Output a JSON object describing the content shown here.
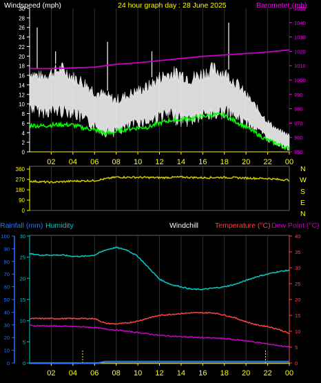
{
  "header": {
    "windspeed_label": "Windspeed (mph)",
    "title": "24 hour graph day : 28 June 2025",
    "barometer_label": "Barometer (mb)"
  },
  "compass": [
    "N",
    "W",
    "S",
    "E",
    "N"
  ],
  "footer_labels": {
    "rainfall": "Rainfall (mm)",
    "humidity": "Humidity",
    "windchill": "Windchill",
    "temperature": "Temperature (°C)",
    "dewpoint": "Dew Point (°C)"
  },
  "colors": {
    "background": "#000000",
    "axis_left": "#ffffff",
    "axis_right": "#ff00ff",
    "hour_labels": "#ffff00",
    "windspeed": "#ffffff",
    "wind_average": "#00ff00",
    "barometer": "#cc00cc",
    "wind_direction": "#cccc00",
    "rainfall": "#2277ff",
    "humidity": "#00cccc",
    "temperature": "#ff4444",
    "dewpoint": "#cc00cc",
    "windchill": "#ffffff"
  },
  "chart_data": [
    {
      "type": "line",
      "name": "wind-and-barometer",
      "x_ticks": [
        "02",
        "04",
        "06",
        "08",
        "10",
        "12",
        "14",
        "16",
        "18",
        "20",
        "22",
        "00"
      ],
      "y_left_ticks": [
        0,
        2,
        4,
        6,
        8,
        10,
        12,
        14,
        16,
        18,
        20,
        22,
        24,
        26,
        28,
        30
      ],
      "y_left_range": [
        0,
        30
      ],
      "y_right_ticks": [
        950,
        960,
        970,
        980,
        990,
        1000,
        1010,
        1020,
        1030,
        1040,
        1050
      ],
      "y_right_range": [
        950,
        1050
      ],
      "windspeed_band": {
        "x": [
          0,
          1,
          2,
          3,
          4,
          5,
          6,
          7,
          8,
          9,
          10,
          11,
          12,
          13,
          14,
          15,
          16,
          17,
          18,
          19,
          20,
          21,
          22,
          23,
          24
        ],
        "low": [
          8,
          7,
          7,
          7,
          7,
          5,
          4,
          3,
          3,
          4,
          5,
          5,
          6,
          6,
          5,
          5,
          6,
          6,
          7,
          6,
          5,
          4,
          2,
          1,
          0
        ],
        "high": [
          18,
          17,
          18,
          19,
          17,
          16,
          14,
          13,
          12,
          13,
          14,
          15,
          17,
          18,
          18,
          17,
          18,
          19,
          18,
          16,
          13,
          10,
          7,
          5,
          4
        ],
        "peak_gusts": [
          {
            "x": 0.7,
            "y": 26
          },
          {
            "x": 2.4,
            "y": 21
          },
          {
            "x": 7.2,
            "y": 23
          },
          {
            "x": 11.3,
            "y": 21
          },
          {
            "x": 18.4,
            "y": 27
          }
        ]
      },
      "wind_average": {
        "x": [
          0,
          1,
          2,
          3,
          4,
          5,
          6,
          7,
          8,
          9,
          10,
          11,
          12,
          13,
          14,
          15,
          16,
          17,
          18,
          19,
          20,
          21,
          22,
          23,
          24
        ],
        "y": [
          5.6,
          5.4,
          5.6,
          5.7,
          5.6,
          5.0,
          4.6,
          3.8,
          4.2,
          4.8,
          5.0,
          5.2,
          6.0,
          6.6,
          6.8,
          7.0,
          7.4,
          7.8,
          7.6,
          6.4,
          5.2,
          3.8,
          2.4,
          1.6,
          0.6
        ]
      },
      "barometer": {
        "x": [
          0,
          2,
          4,
          6,
          8,
          10,
          12,
          14,
          16,
          18,
          20,
          22,
          24
        ],
        "y": [
          1008,
          1008,
          1008.5,
          1009,
          1011,
          1012,
          1013.5,
          1015,
          1016.5,
          1017.5,
          1018.5,
          1019.5,
          1021
        ]
      }
    },
    {
      "type": "line",
      "name": "wind-direction",
      "y_ticks": [
        0,
        90,
        180,
        270,
        360
      ],
      "y_range": [
        0,
        360
      ],
      "direction": {
        "x": [
          0,
          2,
          4,
          6,
          7,
          8,
          10,
          12,
          14,
          16,
          18,
          20,
          22,
          23,
          24
        ],
        "y": [
          255,
          245,
          255,
          260,
          275,
          290,
          288,
          285,
          290,
          285,
          288,
          282,
          278,
          270,
          265
        ]
      }
    },
    {
      "type": "line",
      "name": "rain-humidity-temperature",
      "y_left_outer_ticks": [
        0,
        10,
        20,
        30,
        40,
        50,
        60,
        70,
        80,
        90,
        100
      ],
      "y_left_outer_range": [
        0,
        100
      ],
      "y_left_inner_ticks": [
        0,
        5,
        10,
        15,
        20,
        25,
        30
      ],
      "y_left_inner_range": [
        0,
        30
      ],
      "y_right_ticks": [
        0,
        5,
        10,
        15,
        20,
        25,
        30,
        35,
        40
      ],
      "y_right_range": [
        0,
        40
      ],
      "humidity": {
        "x": [
          0,
          1,
          2,
          3,
          4,
          5,
          6,
          7,
          8,
          9,
          10,
          11,
          12,
          13,
          14,
          15,
          16,
          17,
          18,
          19,
          20,
          21,
          22,
          23,
          24
        ],
        "y": [
          86,
          85,
          85,
          85,
          84,
          84,
          85,
          89,
          91,
          89,
          84,
          75,
          66,
          62,
          60,
          58,
          58,
          59,
          60,
          62,
          65,
          68,
          70,
          72,
          73
        ]
      },
      "temperature": {
        "x": [
          0,
          2,
          4,
          6,
          7,
          8,
          9,
          10,
          11,
          12,
          13,
          14,
          15,
          16,
          17,
          18,
          19,
          20,
          21,
          22,
          23,
          24
        ],
        "y": [
          14,
          14,
          14,
          14,
          12.5,
          12.3,
          12.6,
          13.2,
          14.2,
          15.0,
          15.3,
          15.6,
          15.8,
          15.8,
          15.8,
          15.1,
          14.2,
          13.0,
          12.0,
          11.5,
          10.6,
          9.3
        ]
      },
      "dewpoint": {
        "x": [
          0,
          2,
          4,
          6,
          7,
          8,
          10,
          12,
          14,
          16,
          18,
          20,
          22,
          24
        ],
        "y": [
          11.8,
          11.7,
          11.5,
          11.2,
          10.7,
          10.4,
          9.6,
          8.7,
          8.3,
          8.0,
          7.7,
          7.0,
          6.0,
          5.0
        ]
      },
      "windchill": {
        "x": [],
        "y": []
      },
      "rainfall": {
        "x": [
          0,
          6.3,
          7.0,
          24
        ],
        "y": [
          0,
          0,
          1.2,
          1.2
        ]
      },
      "rain_ticks_x": [
        4.9,
        21.8
      ]
    }
  ]
}
